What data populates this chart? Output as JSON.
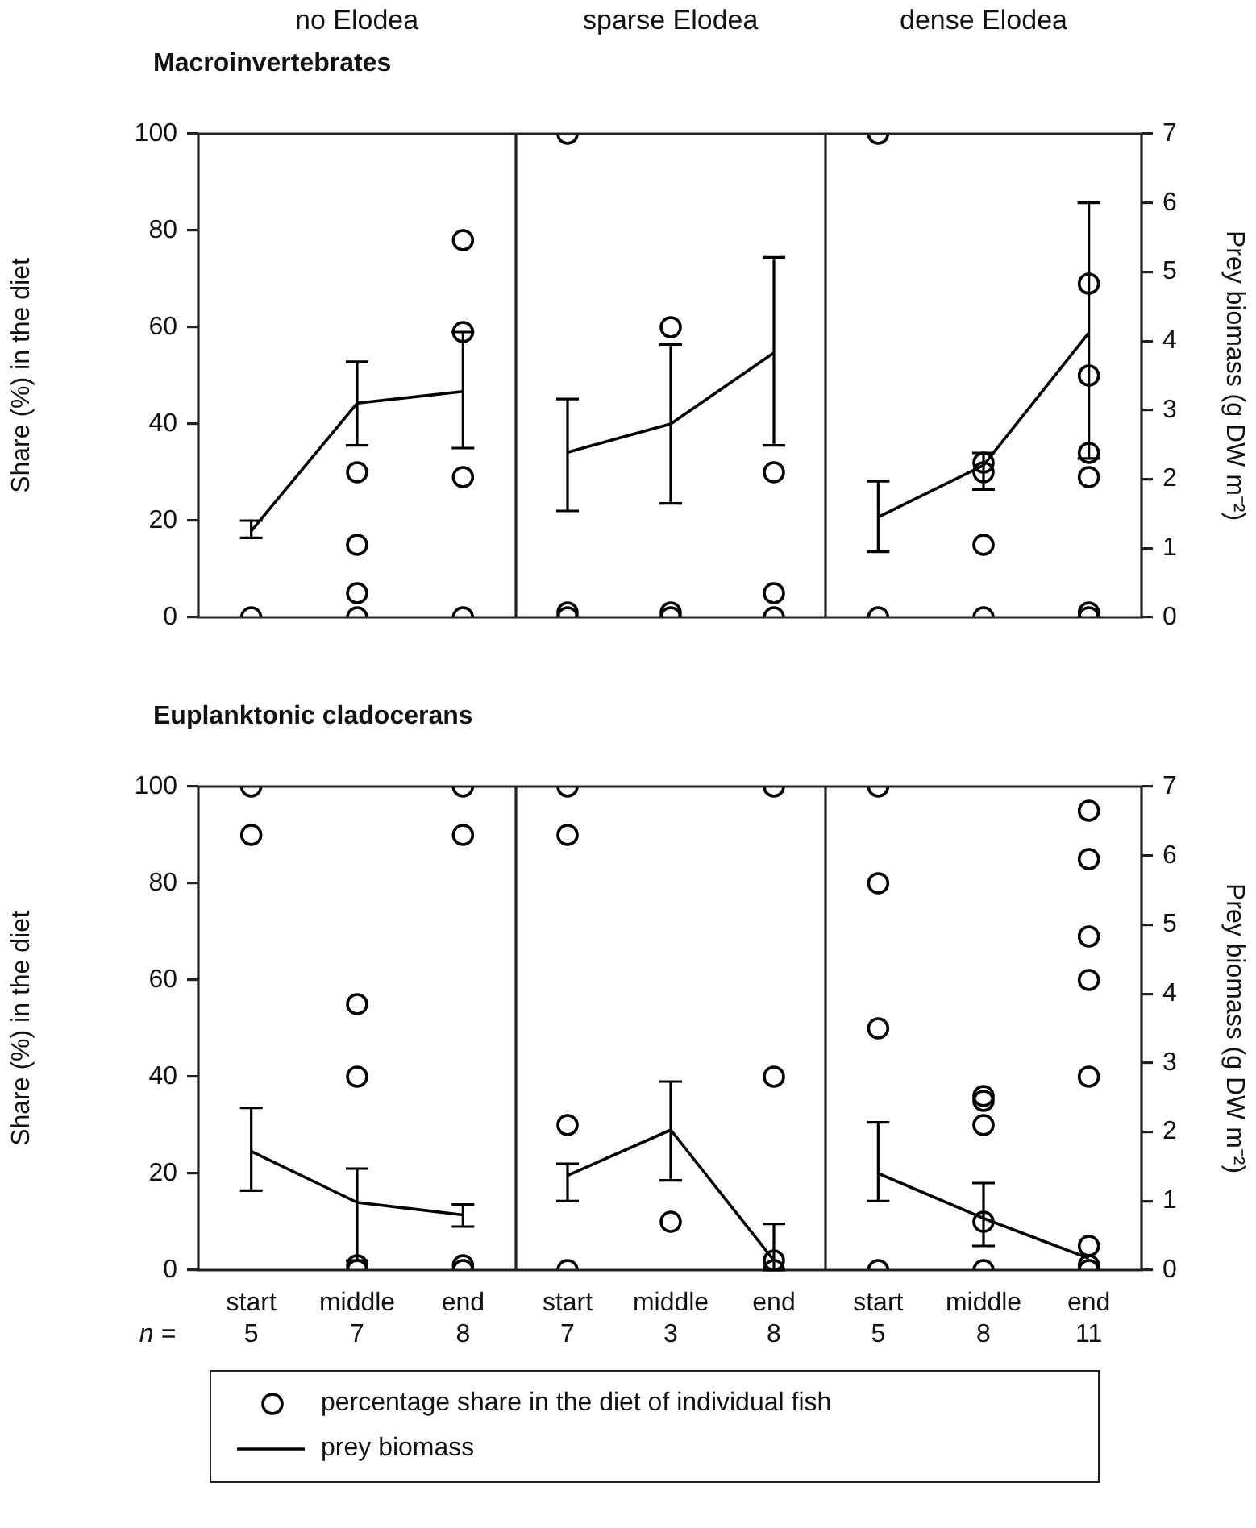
{
  "chart_data": [
    {
      "type": "scatter",
      "title": "no Elodea",
      "subtitle": "Macroinvertebrates",
      "ylabel": "Share (%) in the diet",
      "categories": [
        "start",
        "middle",
        "end"
      ],
      "ylim": [
        0,
        100
      ],
      "yticks": [
        0,
        20,
        40,
        60,
        80,
        100
      ],
      "y2lim": [
        0,
        7
      ],
      "tick_labels": "y",
      "legend": "bottom",
      "series": [
        {
          "name": "percentage share in the diet of individual fish",
          "type": "scatter",
          "color": "#000000",
          "marker": "circle",
          "x": [
            "start",
            "middle",
            "middle",
            "middle",
            "middle",
            "end",
            "end",
            "end",
            "end"
          ],
          "values": [
            0,
            30,
            15,
            5,
            0,
            78,
            59,
            29,
            0
          ]
        },
        {
          "name": "prey biomass",
          "type": "line",
          "axis": "y2",
          "color": "#000000",
          "marker": "none",
          "values": [
            1.25,
            3.1,
            3.27
          ],
          "errors": [
            [
              1.15,
              1.4
            ],
            [
              2.49,
              3.7
            ],
            [
              2.45,
              4.13
            ]
          ]
        }
      ]
    },
    {
      "type": "scatter",
      "title": "sparse Elodea",
      "categories": [
        "start",
        "middle",
        "end"
      ],
      "ylim": [
        0,
        100
      ],
      "y2lim": [
        0,
        7
      ],
      "tick_labels": false,
      "series": [
        {
          "type": "scatter",
          "color": "#000000",
          "marker": "circle",
          "x": [
            "start",
            "start",
            "start",
            "middle",
            "middle",
            "middle",
            "end",
            "end",
            "end"
          ],
          "values": [
            100,
            1,
            0,
            60,
            1,
            0,
            30,
            5,
            0
          ]
        },
        {
          "type": "line",
          "axis": "y2",
          "color": "#000000",
          "marker": "none",
          "values": [
            2.39,
            2.8,
            3.83
          ],
          "errors": [
            [
              1.54,
              3.16
            ],
            [
              1.65,
              3.95
            ],
            [
              2.49,
              5.21
            ]
          ]
        }
      ]
    },
    {
      "type": "scatter",
      "title": "dense Elodea",
      "y2label": "Prey biomass (g DW m⁻²)",
      "categories": [
        "start",
        "middle",
        "end"
      ],
      "ylim": [
        0,
        100
      ],
      "y2lim": [
        0,
        7
      ],
      "y2ticks": [
        0,
        1,
        2,
        3,
        4,
        5,
        6,
        7
      ],
      "tick_labels": "y",
      "series": [
        {
          "type": "scatter",
          "color": "#000000",
          "marker": "circle",
          "x": [
            "start",
            "start",
            "middle",
            "middle",
            "middle",
            "middle",
            "end",
            "end",
            "end",
            "end",
            "end",
            "end"
          ],
          "values": [
            100,
            0,
            32,
            30,
            15,
            0,
            69,
            50,
            34,
            29,
            1,
            0
          ]
        },
        {
          "type": "line",
          "axis": "y2",
          "color": "#000000",
          "marker": "none",
          "values": [
            1.45,
            2.2,
            4.12
          ],
          "errors": [
            [
              0.95,
              1.97
            ],
            [
              1.85,
              2.38
            ],
            [
              2.3,
              6.0
            ]
          ]
        }
      ]
    },
    {
      "type": "scatter",
      "subtitle": "Euplanktonic cladocerans",
      "ylabel": "Share (%) in the diet",
      "categories": [
        "start",
        "middle",
        "end"
      ],
      "ylim": [
        0,
        100
      ],
      "yticks": [
        0,
        20,
        40,
        60,
        80,
        100
      ],
      "y2lim": [
        0,
        7
      ],
      "tick_labels": "xy",
      "annotations": [
        "n =",
        "5",
        "7",
        "8"
      ],
      "series": [
        {
          "type": "scatter",
          "color": "#000000",
          "marker": "circle",
          "x": [
            "start",
            "start",
            "middle",
            "middle",
            "middle",
            "middle",
            "end",
            "end",
            "end",
            "end"
          ],
          "values": [
            100,
            90,
            55,
            40,
            1,
            0,
            100,
            90,
            1,
            0
          ]
        },
        {
          "type": "line",
          "axis": "y2",
          "color": "#000000",
          "marker": "none",
          "values": [
            1.72,
            0.98,
            0.8
          ],
          "errors": [
            [
              1.15,
              2.35
            ],
            [
              0.14,
              1.47
            ],
            [
              0.63,
              0.95
            ]
          ]
        }
      ]
    },
    {
      "type": "scatter",
      "categories": [
        "start",
        "middle",
        "end"
      ],
      "ylim": [
        0,
        100
      ],
      "y2lim": [
        0,
        7
      ],
      "tick_labels": "x",
      "annotations": [
        "7",
        "3",
        "8"
      ],
      "series": [
        {
          "type": "scatter",
          "color": "#000000",
          "marker": "circle",
          "x": [
            "start",
            "start",
            "start",
            "start",
            "middle",
            "end",
            "end",
            "end",
            "end"
          ],
          "values": [
            100,
            90,
            30,
            0,
            10,
            100,
            40,
            2,
            0
          ]
        },
        {
          "type": "line",
          "axis": "y2",
          "color": "#000000",
          "marker": "none",
          "values": [
            1.37,
            2.03,
            0.14
          ],
          "errors": [
            [
              1.0,
              1.54
            ],
            [
              1.3,
              2.73
            ],
            [
              0,
              0.67
            ]
          ]
        }
      ]
    },
    {
      "type": "scatter",
      "y2label": "Prey biomass (g DW m⁻²)",
      "categories": [
        "start",
        "middle",
        "end"
      ],
      "ylim": [
        0,
        100
      ],
      "y2lim": [
        0,
        7
      ],
      "y2ticks": [
        0,
        1,
        2,
        3,
        4,
        5,
        6,
        7
      ],
      "tick_labels": "xy2",
      "annotations": [
        "5",
        "8",
        "11"
      ],
      "series": [
        {
          "type": "scatter",
          "color": "#000000",
          "marker": "circle",
          "x": [
            "start",
            "start",
            "start",
            "start",
            "middle",
            "middle",
            "middle",
            "middle",
            "middle",
            "end",
            "end",
            "end",
            "end",
            "end",
            "end",
            "end",
            "end"
          ],
          "values": [
            100,
            80,
            50,
            0,
            36,
            35,
            30,
            10,
            0,
            95,
            85,
            69,
            60,
            40,
            5,
            1,
            0
          ]
        },
        {
          "type": "line",
          "axis": "y2",
          "color": "#000000",
          "marker": "none",
          "values": [
            1.4,
            0.75,
            0.17
          ],
          "errors": [
            [
              1.0,
              2.14
            ],
            [
              0.35,
              1.26
            ],
            null
          ]
        }
      ]
    }
  ]
}
